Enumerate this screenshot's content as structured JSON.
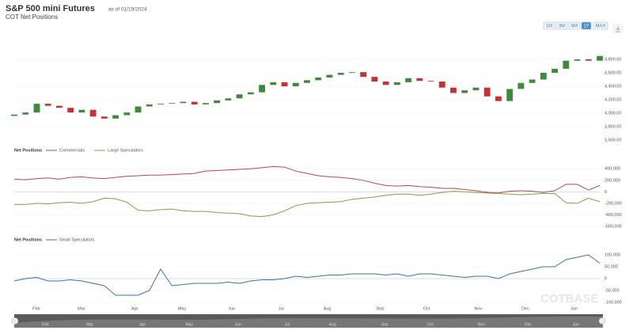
{
  "header": {
    "title": "S&P 500 mini Futures",
    "as_of": "as of 01/19/2024",
    "subtitle": "COT Net Positions"
  },
  "range_buttons": [
    "1M",
    "3M",
    "6M",
    "1Y",
    "MAX"
  ],
  "active_range": "1Y",
  "watermark": "COTBASE",
  "chart_data": [
    {
      "type": "candlestick",
      "up_color": "#3f8a3a",
      "down_color": "#cc2f2f",
      "open": [
        3960,
        3980,
        4010,
        4140,
        4110,
        4080,
        4010,
        4050,
        3950,
        3920,
        3970,
        4010,
        4100,
        4130,
        4140,
        4150,
        4170,
        4130,
        4150,
        4190,
        4220,
        4280,
        4310,
        4420,
        4460,
        4400,
        4450,
        4490,
        4530,
        4570,
        4600,
        4610,
        4540,
        4470,
        4420,
        4460,
        4520,
        4480,
        4470,
        4380,
        4300,
        4340,
        4380,
        4250,
        4180,
        4360,
        4450,
        4500,
        4600,
        4660,
        4780,
        4800,
        4780
      ],
      "close": [
        3980,
        4010,
        4140,
        4110,
        4080,
        4010,
        4050,
        3950,
        3920,
        3970,
        4010,
        4100,
        4130,
        4140,
        4150,
        4170,
        4130,
        4150,
        4190,
        4220,
        4280,
        4310,
        4420,
        4460,
        4400,
        4450,
        4490,
        4530,
        4570,
        4600,
        4610,
        4540,
        4470,
        4420,
        4460,
        4520,
        4480,
        4470,
        4380,
        4300,
        4340,
        4380,
        4250,
        4180,
        4360,
        4450,
        4500,
        4600,
        4660,
        4780,
        4800,
        4780,
        4850
      ],
      "xlim": [
        0,
        52
      ],
      "ylim": [
        3600,
        4900
      ],
      "yticks": [
        {
          "value": 3600,
          "label": "3,600.00"
        },
        {
          "value": 3800,
          "label": "3,800.00"
        },
        {
          "value": 4000,
          "label": "4,000.00"
        },
        {
          "value": 4200,
          "label": "4,200.00"
        },
        {
          "value": 4400,
          "label": "4,400.00"
        },
        {
          "value": 4600,
          "label": "4,600.00"
        },
        {
          "value": 4800,
          "label": "4,800.00"
        }
      ]
    },
    {
      "type": "line",
      "title": "Net Positions",
      "series": [
        {
          "name": "Commercials",
          "color": "#b94a48",
          "values": [
            220000,
            210000,
            230000,
            240000,
            220000,
            250000,
            260000,
            240000,
            230000,
            250000,
            270000,
            280000,
            290000,
            290000,
            300000,
            310000,
            320000,
            360000,
            370000,
            380000,
            390000,
            400000,
            420000,
            440000,
            430000,
            360000,
            320000,
            280000,
            260000,
            250000,
            230000,
            200000,
            150000,
            110000,
            100000,
            110000,
            90000,
            80000,
            60000,
            60000,
            40000,
            20000,
            -10000,
            -20000,
            10000,
            20000,
            10000,
            -10000,
            20000,
            130000,
            130000,
            30000,
            110000
          ]
        },
        {
          "name": "Large Speculators",
          "color": "#8a9c45",
          "values": [
            -220000,
            -220000,
            -200000,
            -210000,
            -190000,
            -180000,
            -200000,
            -170000,
            -110000,
            -120000,
            -180000,
            -320000,
            -330000,
            -310000,
            -300000,
            -330000,
            -340000,
            -340000,
            -360000,
            -370000,
            -380000,
            -420000,
            -430000,
            -400000,
            -330000,
            -240000,
            -200000,
            -190000,
            -180000,
            -170000,
            -130000,
            -110000,
            -90000,
            -60000,
            -40000,
            -40000,
            -60000,
            -40000,
            -10000,
            10000,
            0,
            -10000,
            -20000,
            -30000,
            -40000,
            -50000,
            -40000,
            -30000,
            -30000,
            -190000,
            -200000,
            -110000,
            -170000
          ]
        }
      ],
      "xlim": [
        0,
        52
      ],
      "ylim": [
        -600000,
        500000
      ],
      "yticks": [
        {
          "value": -600000,
          "label": "-600,000"
        },
        {
          "value": -400000,
          "label": "-400,000"
        },
        {
          "value": -200000,
          "label": "-200,000"
        },
        0,
        {
          "value": 200000,
          "label": "200,000"
        },
        {
          "value": 400000,
          "label": "400,000"
        }
      ]
    },
    {
      "type": "line",
      "title": "Net Positions",
      "series": [
        {
          "name": "Small Speculators",
          "color": "#3b6fb3",
          "values": [
            -10000,
            0,
            5000,
            -10000,
            -10000,
            -5000,
            -10000,
            -20000,
            -30000,
            -70000,
            -70000,
            -70000,
            -50000,
            40000,
            -30000,
            -25000,
            -20000,
            -20000,
            -20000,
            -15000,
            -20000,
            -10000,
            -5000,
            -5000,
            0,
            10000,
            5000,
            10000,
            15000,
            15000,
            20000,
            20000,
            20000,
            15000,
            20000,
            10000,
            20000,
            20000,
            15000,
            10000,
            5000,
            10000,
            10000,
            0,
            20000,
            30000,
            40000,
            50000,
            50000,
            80000,
            90000,
            100000,
            65000
          ]
        }
      ],
      "xlim": [
        0,
        52
      ],
      "ylim": [
        -100000,
        110000
      ],
      "yticks": [
        {
          "value": -100000,
          "label": "-100,000"
        },
        {
          "value": -50000,
          "label": "-50,000"
        },
        0,
        {
          "value": 50000,
          "label": "50,000"
        },
        {
          "value": 100000,
          "label": "100,000"
        }
      ],
      "xticks": [
        {
          "value": 1.96,
          "label": "Feb"
        },
        {
          "value": 5.96,
          "label": "Mar"
        },
        {
          "value": 10.7,
          "label": "Apr"
        },
        {
          "value": 14.9,
          "label": "May"
        },
        {
          "value": 19.3,
          "label": "Jun"
        },
        {
          "value": 23.7,
          "label": "Jul"
        },
        {
          "value": 27.8,
          "label": "Aug"
        },
        {
          "value": 32.5,
          "label": "Sep"
        },
        {
          "value": 36.6,
          "label": "Oct"
        },
        {
          "value": 41.2,
          "label": "Nov"
        },
        {
          "value": 45.4,
          "label": "Dec"
        },
        {
          "value": 49.7,
          "label": "Jan"
        }
      ]
    }
  ]
}
